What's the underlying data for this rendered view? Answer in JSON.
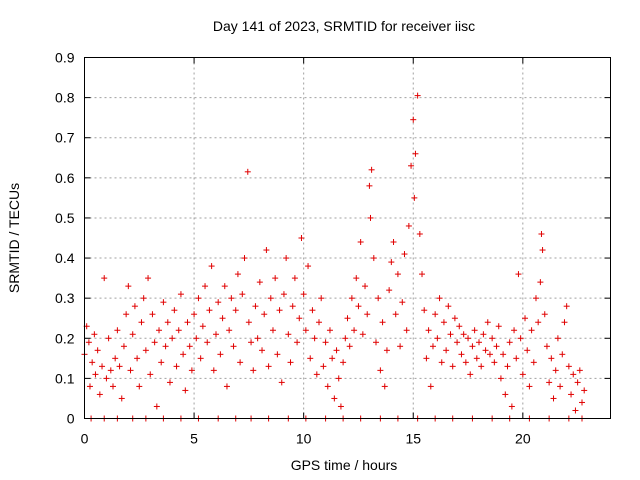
{
  "chart_data": {
    "type": "scatter",
    "title": "Day 141 of 2023, SRMTID for receiver iisc",
    "xlabel": "GPS time / hours",
    "ylabel": "SRMTID / TECUs",
    "xlim": [
      0,
      24
    ],
    "ylim": [
      0,
      0.9
    ],
    "xticks": [
      0,
      5,
      10,
      15,
      20
    ],
    "xtick_labels": [
      "0",
      "5",
      "10",
      "15",
      "20"
    ],
    "yticks": [
      0,
      0.1,
      0.2,
      0.3,
      0.4,
      0.5,
      0.6,
      0.7,
      0.8,
      0.9
    ],
    "ytick_labels": [
      "0",
      "0.1",
      "0.2",
      "0.3",
      "0.4",
      "0.5",
      "0.6",
      "0.7",
      "0.8",
      "0.9"
    ],
    "grid": true,
    "marker": "+",
    "color": "#e00000",
    "series": [
      {
        "name": "SRMTID",
        "points": [
          [
            0.0,
            0.16
          ],
          [
            0.1,
            0.23
          ],
          [
            0.2,
            0.19
          ],
          [
            0.25,
            0.08
          ],
          [
            0.35,
            0.14
          ],
          [
            0.45,
            0.21
          ],
          [
            0.5,
            0.11
          ],
          [
            0.6,
            0.17
          ],
          [
            0.7,
            0.06
          ],
          [
            0.8,
            0.13
          ],
          [
            0.9,
            0.35
          ],
          [
            1.0,
            0.1
          ],
          [
            1.1,
            0.2
          ],
          [
            1.2,
            0.12
          ],
          [
            1.3,
            0.08
          ],
          [
            1.4,
            0.15
          ],
          [
            1.5,
            0.22
          ],
          [
            1.6,
            0.13
          ],
          [
            1.7,
            0.05
          ],
          [
            1.8,
            0.18
          ],
          [
            1.9,
            0.26
          ],
          [
            2.0,
            0.33
          ],
          [
            2.1,
            0.12
          ],
          [
            2.2,
            0.21
          ],
          [
            2.3,
            0.28
          ],
          [
            2.4,
            0.15
          ],
          [
            2.5,
            0.08
          ],
          [
            2.6,
            0.24
          ],
          [
            2.7,
            0.3
          ],
          [
            2.8,
            0.17
          ],
          [
            2.9,
            0.35
          ],
          [
            3.0,
            0.11
          ],
          [
            3.1,
            0.26
          ],
          [
            3.2,
            0.19
          ],
          [
            3.3,
            0.03
          ],
          [
            3.4,
            0.22
          ],
          [
            3.5,
            0.14
          ],
          [
            3.6,
            0.29
          ],
          [
            3.7,
            0.18
          ],
          [
            3.8,
            0.24
          ],
          [
            3.9,
            0.09
          ],
          [
            4.0,
            0.2
          ],
          [
            4.1,
            0.27
          ],
          [
            4.2,
            0.13
          ],
          [
            4.3,
            0.22
          ],
          [
            4.4,
            0.31
          ],
          [
            4.5,
            0.16
          ],
          [
            4.6,
            0.07
          ],
          [
            4.7,
            0.24
          ],
          [
            4.8,
            0.18
          ],
          [
            4.9,
            0.12
          ],
          [
            5.0,
            0.26
          ],
          [
            5.1,
            0.2
          ],
          [
            5.2,
            0.3
          ],
          [
            5.3,
            0.15
          ],
          [
            5.4,
            0.23
          ],
          [
            5.5,
            0.33
          ],
          [
            5.6,
            0.19
          ],
          [
            5.7,
            0.27
          ],
          [
            5.8,
            0.38
          ],
          [
            5.9,
            0.12
          ],
          [
            6.0,
            0.21
          ],
          [
            6.1,
            0.29
          ],
          [
            6.2,
            0.16
          ],
          [
            6.3,
            0.25
          ],
          [
            6.4,
            0.33
          ],
          [
            6.5,
            0.08
          ],
          [
            6.6,
            0.22
          ],
          [
            6.7,
            0.3
          ],
          [
            6.8,
            0.18
          ],
          [
            6.9,
            0.27
          ],
          [
            7.0,
            0.36
          ],
          [
            7.1,
            0.14
          ],
          [
            7.2,
            0.31
          ],
          [
            7.3,
            0.4
          ],
          [
            7.45,
            0.615
          ],
          [
            7.5,
            0.24
          ],
          [
            7.6,
            0.19
          ],
          [
            7.7,
            0.12
          ],
          [
            7.8,
            0.28
          ],
          [
            7.9,
            0.2
          ],
          [
            8.0,
            0.34
          ],
          [
            8.1,
            0.17
          ],
          [
            8.2,
            0.26
          ],
          [
            8.3,
            0.42
          ],
          [
            8.4,
            0.13
          ],
          [
            8.5,
            0.3
          ],
          [
            8.6,
            0.22
          ],
          [
            8.7,
            0.35
          ],
          [
            8.8,
            0.16
          ],
          [
            8.9,
            0.27
          ],
          [
            9.0,
            0.09
          ],
          [
            9.1,
            0.31
          ],
          [
            9.2,
            0.4
          ],
          [
            9.3,
            0.21
          ],
          [
            9.4,
            0.14
          ],
          [
            9.5,
            0.28
          ],
          [
            9.6,
            0.35
          ],
          [
            9.7,
            0.19
          ],
          [
            9.8,
            0.25
          ],
          [
            9.9,
            0.45
          ],
          [
            10.0,
            0.31
          ],
          [
            10.1,
            0.22
          ],
          [
            10.2,
            0.38
          ],
          [
            10.3,
            0.15
          ],
          [
            10.4,
            0.27
          ],
          [
            10.5,
            0.2
          ],
          [
            10.6,
            0.11
          ],
          [
            10.7,
            0.24
          ],
          [
            10.8,
            0.3
          ],
          [
            10.9,
            0.13
          ],
          [
            11.0,
            0.19
          ],
          [
            11.1,
            0.08
          ],
          [
            11.2,
            0.22
          ],
          [
            11.3,
            0.15
          ],
          [
            11.4,
            0.05
          ],
          [
            11.5,
            0.17
          ],
          [
            11.6,
            0.1
          ],
          [
            11.7,
            0.03
          ],
          [
            11.8,
            0.14
          ],
          [
            11.9,
            0.2
          ],
          [
            12.0,
            0.25
          ],
          [
            12.1,
            0.18
          ],
          [
            12.2,
            0.3
          ],
          [
            12.3,
            0.22
          ],
          [
            12.4,
            0.35
          ],
          [
            12.5,
            0.28
          ],
          [
            12.6,
            0.44
          ],
          [
            12.7,
            0.21
          ],
          [
            12.8,
            0.33
          ],
          [
            12.9,
            0.26
          ],
          [
            13.0,
            0.58
          ],
          [
            13.05,
            0.5
          ],
          [
            13.1,
            0.62
          ],
          [
            13.2,
            0.4
          ],
          [
            13.3,
            0.19
          ],
          [
            13.4,
            0.3
          ],
          [
            13.5,
            0.12
          ],
          [
            13.6,
            0.24
          ],
          [
            13.7,
            0.08
          ],
          [
            13.8,
            0.17
          ],
          [
            13.9,
            0.32
          ],
          [
            14.0,
            0.39
          ],
          [
            14.1,
            0.44
          ],
          [
            14.2,
            0.26
          ],
          [
            14.3,
            0.36
          ],
          [
            14.4,
            0.18
          ],
          [
            14.5,
            0.29
          ],
          [
            14.6,
            0.41
          ],
          [
            14.7,
            0.22
          ],
          [
            14.8,
            0.48
          ],
          [
            14.9,
            0.63
          ],
          [
            15.0,
            0.745
          ],
          [
            15.05,
            0.55
          ],
          [
            15.1,
            0.66
          ],
          [
            15.2,
            0.805
          ],
          [
            15.3,
            0.46
          ],
          [
            15.4,
            0.36
          ],
          [
            15.5,
            0.27
          ],
          [
            15.6,
            0.15
          ],
          [
            15.7,
            0.22
          ],
          [
            15.8,
            0.08
          ],
          [
            15.9,
            0.18
          ],
          [
            16.0,
            0.26
          ],
          [
            16.1,
            0.2
          ],
          [
            16.2,
            0.3
          ],
          [
            16.3,
            0.14
          ],
          [
            16.4,
            0.24
          ],
          [
            16.5,
            0.17
          ],
          [
            16.6,
            0.28
          ],
          [
            16.7,
            0.21
          ],
          [
            16.8,
            0.13
          ],
          [
            16.9,
            0.25
          ],
          [
            17.0,
            0.19
          ],
          [
            17.1,
            0.23
          ],
          [
            17.2,
            0.16
          ],
          [
            17.3,
            0.21
          ],
          [
            17.4,
            0.14
          ],
          [
            17.5,
            0.2
          ],
          [
            17.6,
            0.11
          ],
          [
            17.7,
            0.18
          ],
          [
            17.8,
            0.22
          ],
          [
            17.9,
            0.15
          ],
          [
            18.0,
            0.19
          ],
          [
            18.1,
            0.13
          ],
          [
            18.2,
            0.21
          ],
          [
            18.3,
            0.17
          ],
          [
            18.4,
            0.24
          ],
          [
            18.5,
            0.16
          ],
          [
            18.6,
            0.2
          ],
          [
            18.7,
            0.14
          ],
          [
            18.8,
            0.18
          ],
          [
            18.9,
            0.23
          ],
          [
            19.0,
            0.1
          ],
          [
            19.1,
            0.16
          ],
          [
            19.2,
            0.06
          ],
          [
            19.3,
            0.13
          ],
          [
            19.4,
            0.19
          ],
          [
            19.5,
            0.03
          ],
          [
            19.6,
            0.22
          ],
          [
            19.7,
            0.15
          ],
          [
            19.8,
            0.36
          ],
          [
            19.9,
            0.2
          ],
          [
            20.0,
            0.11
          ],
          [
            20.1,
            0.25
          ],
          [
            20.2,
            0.17
          ],
          [
            20.3,
            0.08
          ],
          [
            20.4,
            0.22
          ],
          [
            20.5,
            0.14
          ],
          [
            20.6,
            0.3
          ],
          [
            20.7,
            0.24
          ],
          [
            20.8,
            0.34
          ],
          [
            20.85,
            0.46
          ],
          [
            20.9,
            0.42
          ],
          [
            21.0,
            0.26
          ],
          [
            21.1,
            0.18
          ],
          [
            21.2,
            0.09
          ],
          [
            21.3,
            0.15
          ],
          [
            21.4,
            0.05
          ],
          [
            21.5,
            0.12
          ],
          [
            21.6,
            0.2
          ],
          [
            21.7,
            0.08
          ],
          [
            21.8,
            0.16
          ],
          [
            21.9,
            0.24
          ],
          [
            22.0,
            0.28
          ],
          [
            22.1,
            0.13
          ],
          [
            22.2,
            0.06
          ],
          [
            22.3,
            0.11
          ],
          [
            22.4,
            0.02
          ],
          [
            22.5,
            0.09
          ],
          [
            22.6,
            0.12
          ],
          [
            22.7,
            0.04
          ],
          [
            22.8,
            0.07
          ],
          [
            0.3,
            0
          ],
          [
            0.9,
            0
          ],
          [
            1.5,
            0
          ],
          [
            2.2,
            0
          ],
          [
            2.8,
            0
          ],
          [
            3.6,
            0
          ],
          [
            4.4,
            0
          ],
          [
            5.2,
            0
          ],
          [
            6.1,
            0
          ],
          [
            6.9,
            0
          ],
          [
            7.6,
            0
          ],
          [
            8.4,
            0
          ],
          [
            9.3,
            0
          ],
          [
            10.1,
            0
          ],
          [
            11.0,
            0
          ],
          [
            11.8,
            0
          ],
          [
            12.6,
            0
          ],
          [
            13.5,
            0
          ],
          [
            14.3,
            0
          ],
          [
            15.2,
            0
          ],
          [
            16.0,
            0
          ],
          [
            16.8,
            0
          ],
          [
            17.7,
            0
          ],
          [
            18.6,
            0
          ],
          [
            19.4,
            0
          ],
          [
            20.3,
            0
          ],
          [
            21.2,
            0
          ],
          [
            22.1,
            0
          ],
          [
            22.7,
            0
          ]
        ]
      }
    ]
  }
}
